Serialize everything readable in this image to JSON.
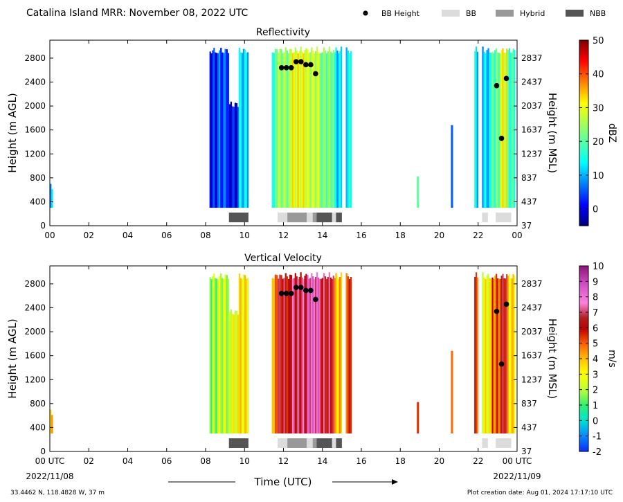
{
  "figure": {
    "title": "Catalina Island MRR:  November 08, 2022 UTC",
    "legend": [
      {
        "label": "BB Height",
        "kind": "dot",
        "color": "#000000"
      },
      {
        "label": "BB",
        "kind": "box",
        "color": "#dcdcdc"
      },
      {
        "label": "Hybrid",
        "kind": "box",
        "color": "#999999"
      },
      {
        "label": "NBB",
        "kind": "box",
        "color": "#555555"
      }
    ],
    "xlabel": "Time (UTC)",
    "start_date": "2022/11/08",
    "end_date": "2022/11/09",
    "location": "33.4462 N, 118.4828 W, 37 m",
    "creation": "Plot creation date: Aug 01, 2024 17:17:10 UTC"
  },
  "chart_data": [
    {
      "type": "heatmap",
      "title": "Reflectivity",
      "ylabel": "Height (m AGL)",
      "ylabel_right": "Height (m MSL)",
      "colorbar_label": "dBZ",
      "colorbar_ticks": [
        0,
        10,
        20,
        30,
        40,
        50
      ],
      "colorbar_range": [
        -5,
        50
      ],
      "xlim": [
        0,
        24
      ],
      "ylim": [
        0,
        3100
      ],
      "x_ticks": [
        "00",
        "02",
        "04",
        "06",
        "08",
        "10",
        "12",
        "14",
        "16",
        "18",
        "20",
        "22",
        "00"
      ],
      "y_ticks": [
        0,
        400,
        800,
        1200,
        1600,
        2000,
        2400,
        2800
      ],
      "y_ticks_right": [
        "37",
        "437",
        "837",
        "1237",
        "1637",
        "2037",
        "2437",
        "2837"
      ],
      "bb_height": [
        {
          "x": 11.9,
          "y": 2640
        },
        {
          "x": 12.15,
          "y": 2640
        },
        {
          "x": 12.4,
          "y": 2640
        },
        {
          "x": 12.65,
          "y": 2740
        },
        {
          "x": 12.9,
          "y": 2740
        },
        {
          "x": 13.15,
          "y": 2690
        },
        {
          "x": 13.4,
          "y": 2690
        },
        {
          "x": 13.65,
          "y": 2540
        },
        {
          "x": 22.95,
          "y": 2340
        },
        {
          "x": 23.2,
          "y": 1460
        },
        {
          "x": 23.45,
          "y": 2460
        }
      ],
      "bb_types": [
        {
          "start": 9.2,
          "end": 10.2,
          "type": "NBB"
        },
        {
          "start": 11.7,
          "end": 12.2,
          "type": "BB"
        },
        {
          "start": 12.2,
          "end": 13.2,
          "type": "Hybrid"
        },
        {
          "start": 13.2,
          "end": 13.5,
          "type": "BB"
        },
        {
          "start": 13.5,
          "end": 13.7,
          "type": "Hybrid"
        },
        {
          "start": 13.7,
          "end": 14.5,
          "type": "NBB"
        },
        {
          "start": 14.5,
          "end": 14.7,
          "type": "BB"
        },
        {
          "start": 14.7,
          "end": 15.0,
          "type": "NBB"
        },
        {
          "start": 22.2,
          "end": 22.5,
          "type": "BB"
        },
        {
          "start": 22.9,
          "end": 23.7,
          "type": "BB"
        }
      ],
      "echo_bands": [
        {
          "start": 0.0,
          "end": 0.15,
          "top": 700,
          "value": 8
        },
        {
          "start": 8.2,
          "end": 8.6,
          "top": 3000,
          "value": 2
        },
        {
          "start": 8.6,
          "end": 9.2,
          "top": 3000,
          "value": 5
        },
        {
          "start": 9.2,
          "end": 9.7,
          "top": 2100,
          "value": 1
        },
        {
          "start": 9.7,
          "end": 10.2,
          "top": 3000,
          "value": 12
        },
        {
          "start": 11.4,
          "end": 11.7,
          "top": 3000,
          "value": 18
        },
        {
          "start": 11.7,
          "end": 12.3,
          "top": 3000,
          "value": 24
        },
        {
          "start": 12.3,
          "end": 13.2,
          "top": 3000,
          "value": 30
        },
        {
          "start": 13.2,
          "end": 13.9,
          "top": 3000,
          "value": 27
        },
        {
          "start": 13.9,
          "end": 14.6,
          "top": 3000,
          "value": 22
        },
        {
          "start": 14.6,
          "end": 15.0,
          "top": 3000,
          "value": 12
        },
        {
          "start": 15.2,
          "end": 15.5,
          "top": 3000,
          "value": 14
        },
        {
          "start": 18.85,
          "end": 18.95,
          "top": 900,
          "value": 16
        },
        {
          "start": 20.6,
          "end": 20.7,
          "top": 1800,
          "value": 10
        },
        {
          "start": 21.8,
          "end": 22.0,
          "top": 3000,
          "value": 13
        },
        {
          "start": 22.2,
          "end": 22.7,
          "top": 3000,
          "value": 12
        },
        {
          "start": 22.7,
          "end": 23.1,
          "top": 3000,
          "value": 20
        },
        {
          "start": 23.1,
          "end": 23.5,
          "top": 3000,
          "value": 30
        },
        {
          "start": 23.5,
          "end": 23.9,
          "top": 3000,
          "value": 18
        }
      ]
    },
    {
      "type": "heatmap",
      "title": "Vertical Velocity",
      "ylabel": "Height (m AGL)",
      "ylabel_right": "Height (m MSL)",
      "colorbar_label": "m/s",
      "colorbar_ticks": [
        -2,
        -1,
        0,
        1,
        2,
        3,
        4,
        5,
        6,
        7,
        8,
        9,
        10
      ],
      "colorbar_range": [
        -2,
        10
      ],
      "xlim": [
        0,
        24
      ],
      "ylim": [
        0,
        3100
      ],
      "x_ticks": [
        "00 UTC",
        "02",
        "04",
        "06",
        "08",
        "10",
        "12",
        "14",
        "16",
        "18",
        "20",
        "22",
        "00 UTC"
      ],
      "y_ticks": [
        0,
        400,
        800,
        1200,
        1600,
        2000,
        2400,
        2800
      ],
      "y_ticks_right": [
        "37",
        "437",
        "837",
        "1237",
        "1637",
        "2037",
        "2437",
        "2837"
      ],
      "bb_height": [
        {
          "x": 11.9,
          "y": 2640
        },
        {
          "x": 12.15,
          "y": 2640
        },
        {
          "x": 12.4,
          "y": 2640
        },
        {
          "x": 12.65,
          "y": 2740
        },
        {
          "x": 12.9,
          "y": 2740
        },
        {
          "x": 13.15,
          "y": 2690
        },
        {
          "x": 13.4,
          "y": 2690
        },
        {
          "x": 13.65,
          "y": 2540
        },
        {
          "x": 22.95,
          "y": 2340
        },
        {
          "x": 23.2,
          "y": 1460
        },
        {
          "x": 23.45,
          "y": 2460
        }
      ],
      "bb_types": [
        {
          "start": 9.2,
          "end": 10.2,
          "type": "NBB"
        },
        {
          "start": 11.7,
          "end": 12.2,
          "type": "BB"
        },
        {
          "start": 12.2,
          "end": 13.2,
          "type": "Hybrid"
        },
        {
          "start": 13.2,
          "end": 13.5,
          "type": "BB"
        },
        {
          "start": 13.5,
          "end": 13.7,
          "type": "Hybrid"
        },
        {
          "start": 13.7,
          "end": 14.5,
          "type": "NBB"
        },
        {
          "start": 14.5,
          "end": 14.7,
          "type": "BB"
        },
        {
          "start": 14.7,
          "end": 15.0,
          "type": "NBB"
        },
        {
          "start": 22.2,
          "end": 22.5,
          "type": "BB"
        },
        {
          "start": 22.9,
          "end": 23.7,
          "type": "BB"
        }
      ],
      "echo_bands": [
        {
          "start": 0.0,
          "end": 0.15,
          "top": 700,
          "value": 3.5
        },
        {
          "start": 8.2,
          "end": 8.6,
          "top": 3000,
          "value": 1.8
        },
        {
          "start": 8.6,
          "end": 9.2,
          "top": 3000,
          "value": 2.2
        },
        {
          "start": 9.2,
          "end": 9.7,
          "top": 2400,
          "value": 2.8
        },
        {
          "start": 9.7,
          "end": 10.2,
          "top": 3000,
          "value": 3.3
        },
        {
          "start": 11.4,
          "end": 11.7,
          "top": 3000,
          "value": 4.5
        },
        {
          "start": 11.7,
          "end": 12.3,
          "top": 3000,
          "value": 6.3
        },
        {
          "start": 12.3,
          "end": 13.2,
          "top": 3000,
          "value": 6.8
        },
        {
          "start": 13.2,
          "end": 13.9,
          "top": 3000,
          "value": 7.8
        },
        {
          "start": 13.9,
          "end": 14.6,
          "top": 3000,
          "value": 6.5
        },
        {
          "start": 14.6,
          "end": 15.0,
          "top": 3000,
          "value": 3.8
        },
        {
          "start": 15.2,
          "end": 15.5,
          "top": 3000,
          "value": 5.5
        },
        {
          "start": 18.85,
          "end": 18.95,
          "top": 900,
          "value": 4.5
        },
        {
          "start": 20.6,
          "end": 20.7,
          "top": 1800,
          "value": 5.8
        },
        {
          "start": 21.8,
          "end": 22.0,
          "top": 3000,
          "value": 5.5
        },
        {
          "start": 22.2,
          "end": 22.7,
          "top": 3000,
          "value": 3.0
        },
        {
          "start": 22.7,
          "end": 23.1,
          "top": 3000,
          "value": 5.0
        },
        {
          "start": 23.1,
          "end": 23.5,
          "top": 3000,
          "value": 6.2
        },
        {
          "start": 23.5,
          "end": 23.9,
          "top": 3000,
          "value": 3.5
        }
      ]
    }
  ]
}
